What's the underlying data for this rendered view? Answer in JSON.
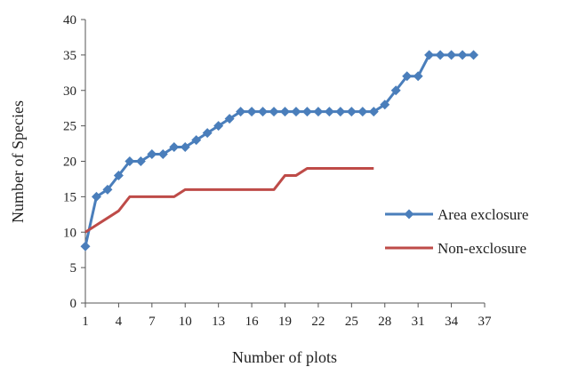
{
  "chart_data": {
    "type": "line",
    "xlabel": "Number of plots",
    "ylabel": "Number of Species",
    "xlim": [
      1,
      37
    ],
    "ylim": [
      0,
      40
    ],
    "x_ticks": [
      1,
      4,
      7,
      10,
      13,
      16,
      19,
      22,
      25,
      28,
      31,
      34,
      37
    ],
    "y_ticks": [
      0,
      5,
      10,
      15,
      20,
      25,
      30,
      35,
      40
    ],
    "grid": false,
    "legend_position": "right",
    "series": [
      {
        "name": "Area exclosure",
        "color": "#4a7ebb",
        "marker": "diamond",
        "x": [
          1,
          2,
          3,
          4,
          5,
          6,
          7,
          8,
          9,
          10,
          11,
          12,
          13,
          14,
          15,
          16,
          17,
          18,
          19,
          20,
          21,
          22,
          23,
          24,
          25,
          26,
          27,
          28,
          29,
          30,
          31,
          32,
          33,
          34,
          35,
          36
        ],
        "values": [
          8,
          15,
          16,
          18,
          20,
          20,
          21,
          21,
          22,
          22,
          23,
          24,
          25,
          26,
          27,
          27,
          27,
          27,
          27,
          27,
          27,
          27,
          27,
          27,
          27,
          27,
          27,
          28,
          30,
          32,
          32,
          35,
          35,
          35,
          35,
          35
        ]
      },
      {
        "name": "Non-exclosure",
        "color": "#be4b48",
        "marker": "none",
        "x": [
          1,
          2,
          3,
          4,
          5,
          6,
          7,
          8,
          9,
          10,
          11,
          12,
          13,
          14,
          15,
          16,
          17,
          18,
          19,
          20,
          21,
          22,
          23,
          24,
          25,
          26,
          27
        ],
        "values": [
          10,
          11,
          12,
          13,
          15,
          15,
          15,
          15,
          15,
          16,
          16,
          16,
          16,
          16,
          16,
          16,
          16,
          16,
          18,
          18,
          19,
          19,
          19,
          19,
          19,
          19,
          19
        ]
      }
    ]
  }
}
